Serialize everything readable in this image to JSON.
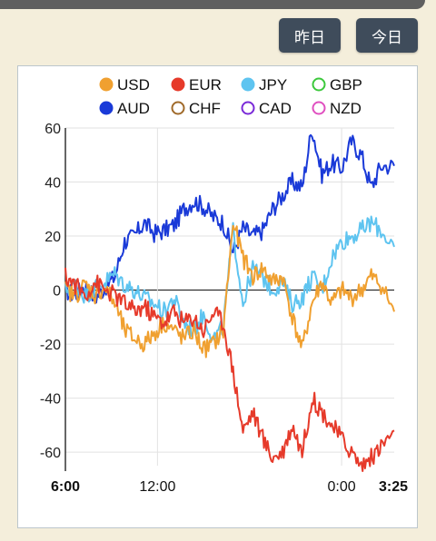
{
  "toolbar": {
    "yesterday_label": "昨日",
    "today_label": "今日"
  },
  "chart_data": {
    "type": "line",
    "x_ticks": [
      "6:00",
      "12:00",
      "0:00",
      "3:25"
    ],
    "x_ticks_bold": [
      "6:00",
      "3:25"
    ],
    "x_range": [
      "6:00",
      "3:25"
    ],
    "ylim": [
      -65,
      60
    ],
    "y_ticks": [
      60,
      40,
      20,
      0,
      -20,
      -40,
      -60
    ],
    "grid": true,
    "legend_position": "top",
    "legend": [
      {
        "name": "USD",
        "color": "#f0a030",
        "filled": true
      },
      {
        "name": "EUR",
        "color": "#e63a2a",
        "filled": true
      },
      {
        "name": "JPY",
        "color": "#5ec4f0",
        "filled": true
      },
      {
        "name": "GBP",
        "color": "#3cc83c",
        "filled": false
      },
      {
        "name": "AUD",
        "color": "#1a3ad8",
        "filled": true
      },
      {
        "name": "CHF",
        "color": "#a06a2a",
        "filled": false
      },
      {
        "name": "CAD",
        "color": "#7a2ad8",
        "filled": false
      },
      {
        "name": "NZD",
        "color": "#e050c0",
        "filled": false
      }
    ],
    "series": [
      {
        "name": "AUD",
        "color": "#1a3ad8",
        "x": [
          0,
          0.03,
          0.06,
          0.09,
          0.12,
          0.15,
          0.18,
          0.21,
          0.24,
          0.27,
          0.3,
          0.33,
          0.36,
          0.39,
          0.42,
          0.45,
          0.48,
          0.51,
          0.54,
          0.57,
          0.6,
          0.63,
          0.66,
          0.69,
          0.72,
          0.75,
          0.78,
          0.81,
          0.84,
          0.87,
          0.9,
          0.93,
          0.96,
          1.0
        ],
        "values": [
          0,
          -2,
          2,
          -3,
          1,
          5,
          18,
          20,
          25,
          21,
          22,
          24,
          30,
          33,
          31,
          27,
          25,
          14,
          23,
          20,
          22,
          30,
          35,
          40,
          38,
          60,
          43,
          47,
          45,
          55,
          50,
          38,
          46,
          46
        ]
      },
      {
        "name": "JPY",
        "color": "#5ec4f0",
        "x": [
          0,
          0.03,
          0.06,
          0.09,
          0.12,
          0.15,
          0.18,
          0.21,
          0.24,
          0.27,
          0.3,
          0.33,
          0.36,
          0.39,
          0.42,
          0.45,
          0.48,
          0.51,
          0.54,
          0.57,
          0.6,
          0.63,
          0.66,
          0.69,
          0.72,
          0.75,
          0.78,
          0.81,
          0.84,
          0.87,
          0.9,
          0.93,
          0.96,
          1.0
        ],
        "values": [
          0,
          2,
          -2,
          1,
          3,
          6,
          2,
          0,
          -3,
          -5,
          -8,
          -3,
          -12,
          -15,
          -9,
          -18,
          -14,
          22,
          -5,
          8,
          5,
          0,
          3,
          -5,
          -3,
          5,
          0,
          12,
          18,
          20,
          22,
          25,
          22,
          16
        ]
      },
      {
        "name": "USD",
        "color": "#f0a030",
        "x": [
          0,
          0.03,
          0.06,
          0.09,
          0.12,
          0.15,
          0.18,
          0.21,
          0.24,
          0.27,
          0.3,
          0.33,
          0.36,
          0.39,
          0.42,
          0.45,
          0.48,
          0.51,
          0.54,
          0.57,
          0.6,
          0.63,
          0.66,
          0.69,
          0.72,
          0.75,
          0.78,
          0.81,
          0.84,
          0.87,
          0.9,
          0.93,
          0.96,
          1.0
        ],
        "values": [
          0,
          -2,
          2,
          -2,
          1,
          -5,
          -15,
          -18,
          -20,
          -16,
          -12,
          -15,
          -18,
          -15,
          -22,
          -20,
          -15,
          25,
          12,
          5,
          8,
          3,
          5,
          -10,
          -22,
          -5,
          3,
          -5,
          0,
          -3,
          0,
          5,
          2,
          -8
        ]
      },
      {
        "name": "EUR",
        "color": "#e63a2a",
        "x": [
          0,
          0.03,
          0.06,
          0.09,
          0.12,
          0.15,
          0.18,
          0.21,
          0.24,
          0.27,
          0.3,
          0.33,
          0.36,
          0.39,
          0.42,
          0.45,
          0.48,
          0.51,
          0.54,
          0.57,
          0.6,
          0.63,
          0.66,
          0.69,
          0.72,
          0.75,
          0.78,
          0.81,
          0.84,
          0.87,
          0.9,
          0.93,
          0.96,
          1.0
        ],
        "values": [
          5,
          2,
          -2,
          3,
          0,
          -2,
          -5,
          -8,
          -6,
          -10,
          -12,
          -8,
          -12,
          -10,
          -15,
          -8,
          -12,
          -30,
          -52,
          -45,
          -55,
          -62,
          -60,
          -50,
          -60,
          -40,
          -45,
          -50,
          -55,
          -60,
          -65,
          -62,
          -58,
          -52
        ]
      }
    ]
  }
}
